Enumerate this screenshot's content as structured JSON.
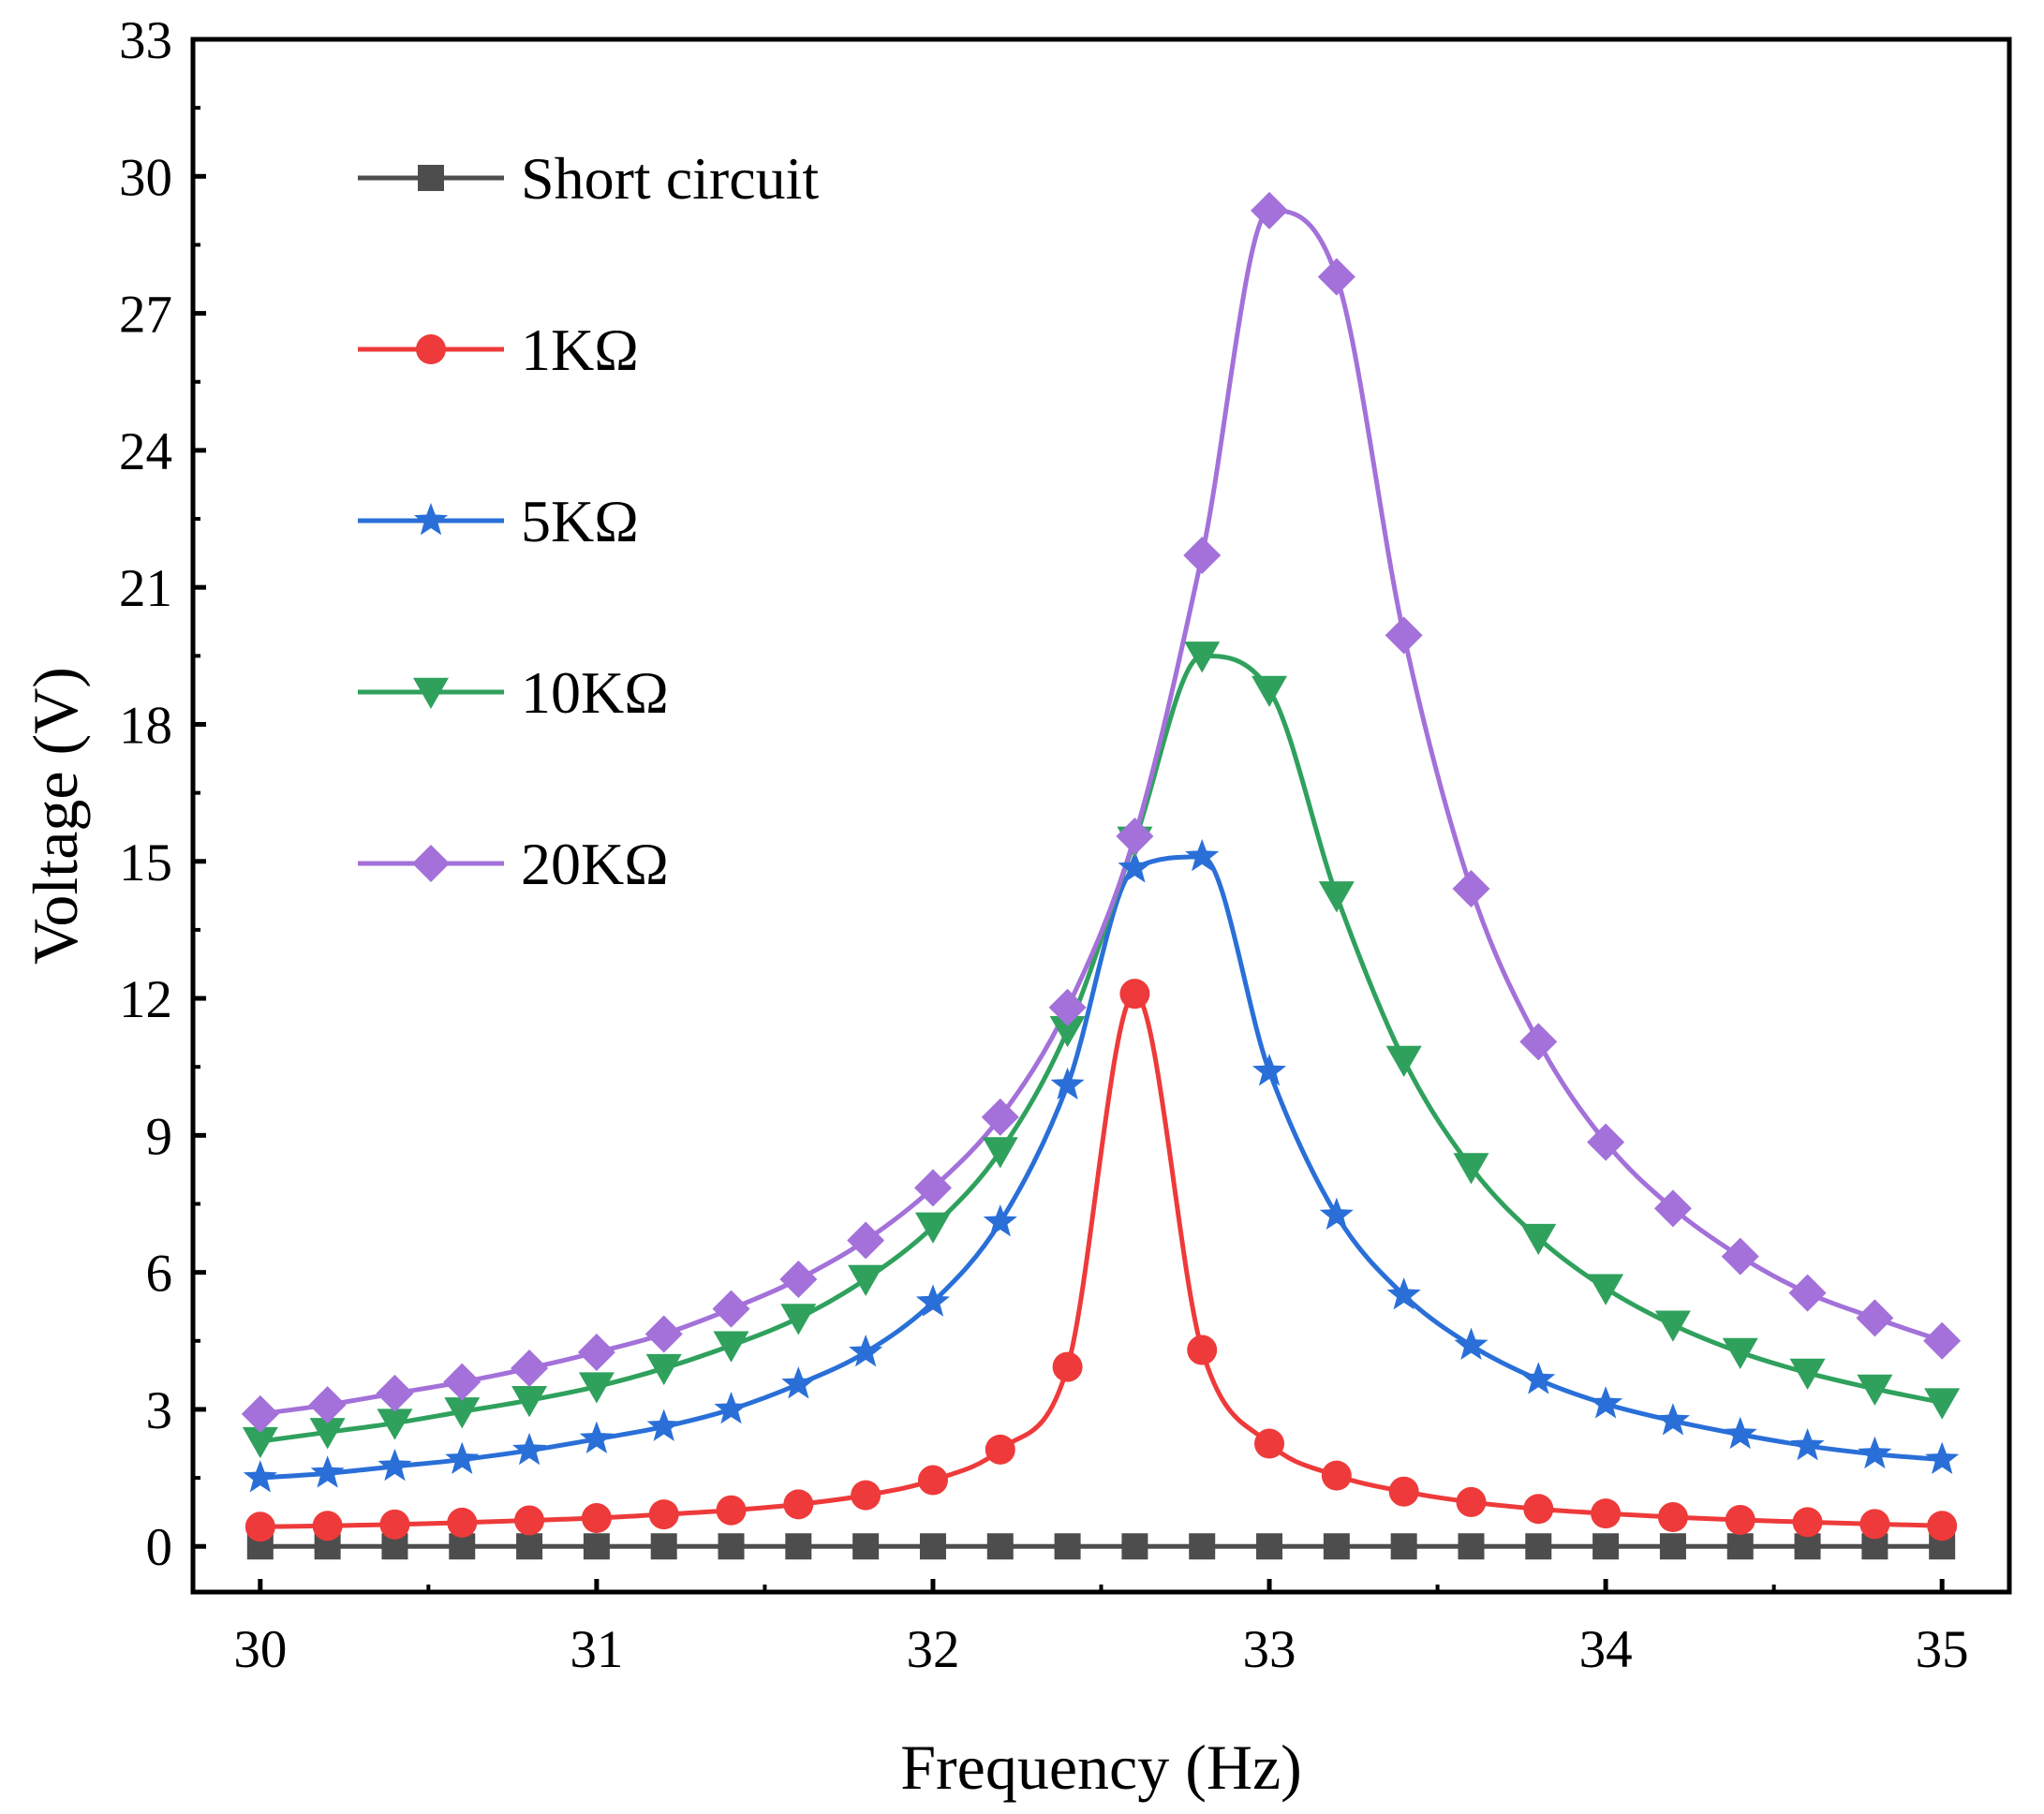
{
  "chart_data": {
    "type": "line",
    "title": "",
    "xlabel": "Frequency (Hz)",
    "ylabel": "Voltage (V)",
    "xlim": [
      29.8,
      35.2
    ],
    "ylim": [
      -1,
      33
    ],
    "xticks": [
      30,
      31,
      32,
      33,
      34,
      35
    ],
    "xtick_labels": [
      "30",
      "31",
      "32",
      "33",
      "34",
      "35"
    ],
    "yticks": [
      0,
      3,
      6,
      9,
      12,
      15,
      18,
      21,
      24,
      27,
      30,
      33
    ],
    "ytick_labels": [
      "0",
      "3",
      "6",
      "9",
      "12",
      "15",
      "18",
      "21",
      "24",
      "27",
      "30",
      "33"
    ],
    "grid": false,
    "legend_position": "top-left",
    "x": [
      30.0,
      30.2,
      30.4,
      30.6,
      30.8,
      31.0,
      31.2,
      31.4,
      31.6,
      31.8,
      32.0,
      32.2,
      32.4,
      32.6,
      32.8,
      33.0,
      33.2,
      33.4,
      33.6,
      33.8,
      34.0,
      34.2,
      34.4,
      34.6,
      34.8,
      35.0
    ],
    "series": [
      {
        "name": "Short circuit",
        "color": "#4d4d4d",
        "marker": "square",
        "values": [
          0,
          0,
          0,
          0,
          0,
          0,
          0,
          0,
          0,
          0,
          0,
          0,
          0,
          0,
          0,
          0,
          0,
          0,
          0,
          0,
          0,
          0,
          0,
          0,
          0,
          0
        ]
      },
      {
        "name": "1KΩ",
        "color": "#ee3a3a",
        "marker": "circle",
        "values": [
          0.43,
          0.45,
          0.48,
          0.52,
          0.57,
          0.62,
          0.7,
          0.79,
          0.92,
          1.12,
          1.45,
          2.12,
          3.93,
          12.1,
          4.3,
          2.25,
          1.55,
          1.2,
          0.97,
          0.82,
          0.72,
          0.64,
          0.58,
          0.53,
          0.49,
          0.45
        ]
      },
      {
        "name": "5KΩ",
        "color": "#2a6fd8",
        "marker": "star",
        "values": [
          1.5,
          1.6,
          1.75,
          1.9,
          2.1,
          2.35,
          2.62,
          3.0,
          3.55,
          4.25,
          5.35,
          7.1,
          10.1,
          14.85,
          15.1,
          10.4,
          7.25,
          5.5,
          4.4,
          3.65,
          3.12,
          2.75,
          2.45,
          2.2,
          2.02,
          1.9
        ]
      },
      {
        "name": "10KΩ",
        "color": "#2fa15d",
        "marker": "triangle-down",
        "values": [
          2.3,
          2.5,
          2.7,
          2.95,
          3.2,
          3.5,
          3.9,
          4.4,
          5.0,
          5.85,
          7.0,
          8.65,
          11.3,
          15.45,
          19.5,
          18.75,
          14.25,
          10.65,
          8.3,
          6.75,
          5.65,
          4.85,
          4.25,
          3.8,
          3.45,
          3.15
        ]
      },
      {
        "name": "20KΩ",
        "color": "#a371d9",
        "marker": "diamond",
        "values": [
          2.9,
          3.1,
          3.35,
          3.6,
          3.9,
          4.25,
          4.65,
          5.2,
          5.85,
          6.7,
          7.85,
          9.4,
          11.8,
          15.55,
          21.7,
          29.25,
          27.8,
          19.95,
          14.4,
          11.05,
          8.85,
          7.4,
          6.35,
          5.55,
          5.0,
          4.5
        ]
      }
    ]
  }
}
